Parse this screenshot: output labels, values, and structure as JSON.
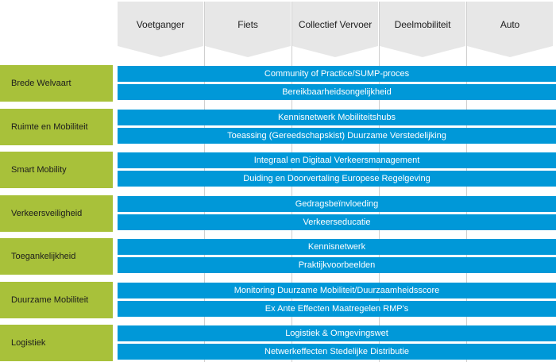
{
  "columns": [
    "Voetganger",
    "Fiets",
    "Collectief Vervoer",
    "Deelmobiliteit",
    "Auto"
  ],
  "rows": [
    {
      "label": "Brede Welvaart",
      "items": [
        "Community of Practice/SUMP-proces",
        "Bereikbaarheidsongelijkheid"
      ]
    },
    {
      "label": "Ruimte en Mobiliteit",
      "items": [
        "Kennisnetwerk Mobiliteitshubs",
        "Toeassing (Gereedschapskist) Duurzame Verstedelijking"
      ]
    },
    {
      "label": "Smart Mobility",
      "items": [
        "Integraal en Digitaal Verkeersmanagement",
        "Duiding en Doorvertaling Europese Regelgeving"
      ]
    },
    {
      "label": "Verkeersveiligheid",
      "items": [
        "Gedragsbeïnvloeding",
        "Verkeerseducatie"
      ]
    },
    {
      "label": "Toegankelijkheid",
      "items": [
        "Kennisnetwerk",
        "Praktijkvoorbeelden"
      ]
    },
    {
      "label": "Duurzame Mobiliteit",
      "items": [
        "Monitoring Duurzame Mobiliteit/Duurzaamheidsscore",
        "Ex Ante Effecten Maatregelen RMP's"
      ]
    },
    {
      "label": "Logistiek",
      "items": [
        "Logistiek & Omgevingswet",
        "Netwerkeffecten Stedelijke Distributie"
      ]
    }
  ],
  "colors": {
    "header_bg": "#e7e7e7",
    "row_label_bg": "#a8c13a",
    "bar_bg": "#0098d8",
    "bar_text": "#ffffff",
    "grid_line": "#cfcfcf"
  }
}
